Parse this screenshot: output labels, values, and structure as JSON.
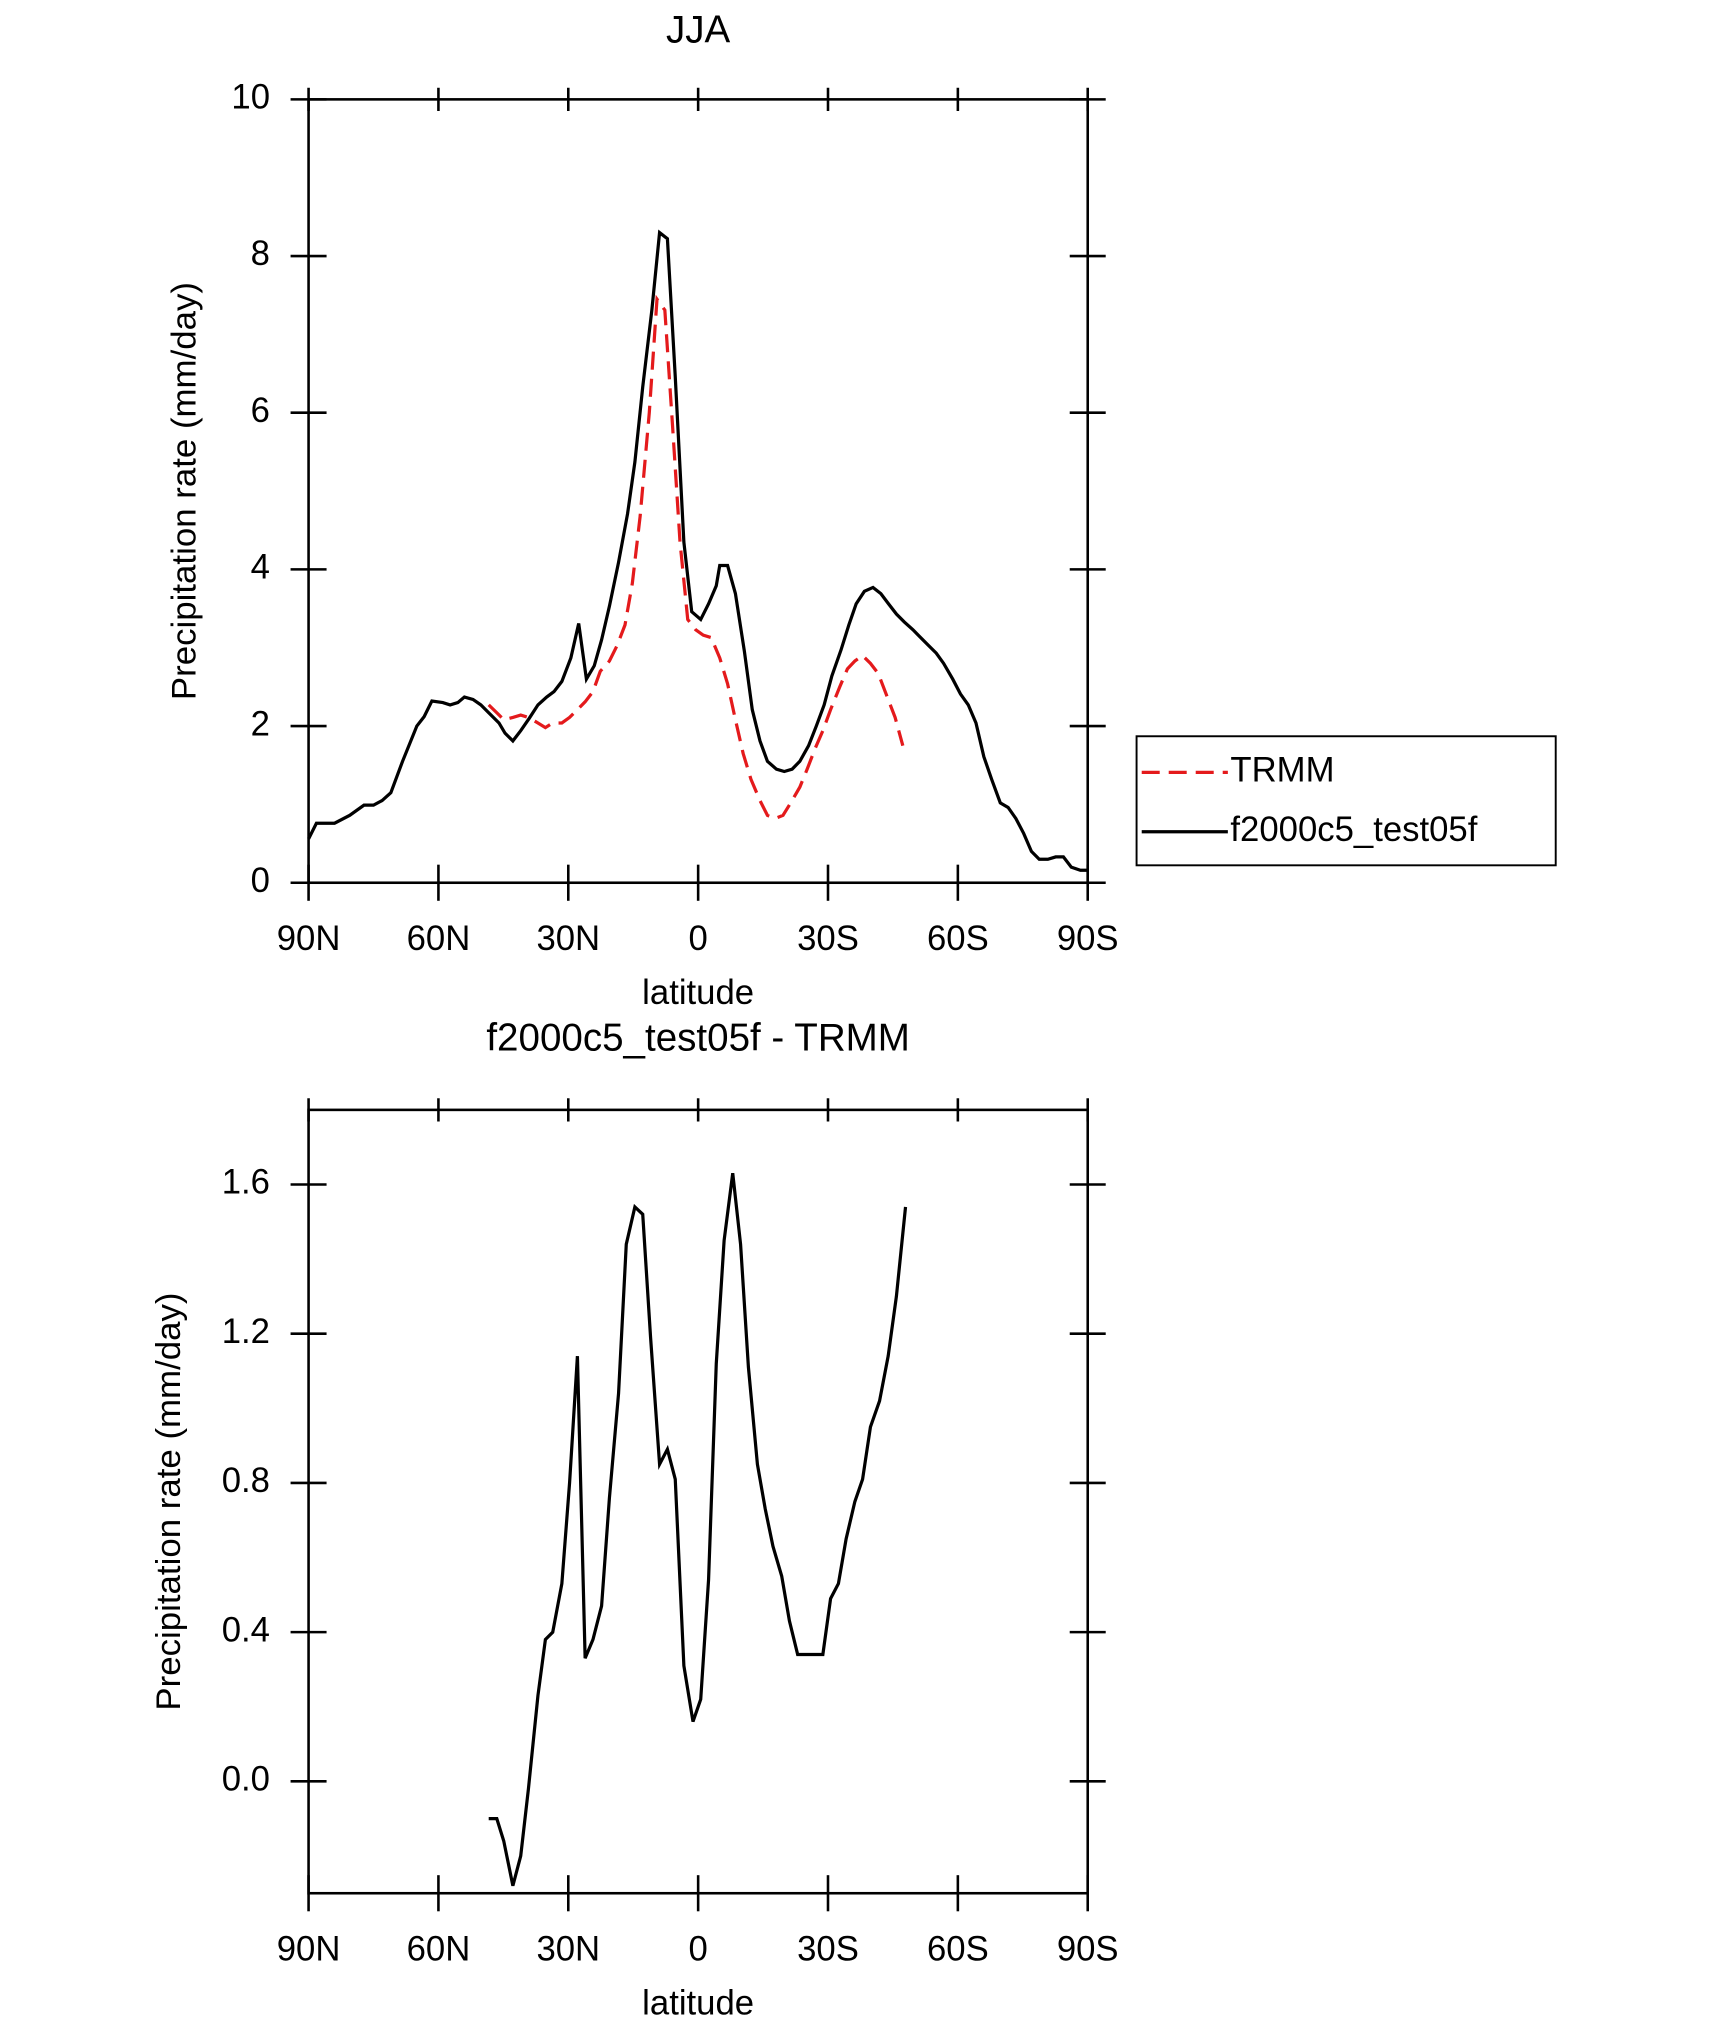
{
  "chart_data": [
    {
      "type": "line",
      "title": "JJA",
      "xlabel": "latitude",
      "ylabel": "Precipitation rate (mm/day)",
      "xlim": [
        90,
        -90
      ],
      "ylim": [
        0,
        10
      ],
      "xticks": [
        {
          "value": 90,
          "label": "90N"
        },
        {
          "value": 60,
          "label": "60N"
        },
        {
          "value": 30,
          "label": "30N"
        },
        0,
        {
          "value": -30,
          "label": "30S"
        },
        {
          "value": -60,
          "label": "60S"
        },
        {
          "value": -90,
          "label": "90S"
        }
      ],
      "yticks": [
        0,
        2,
        4,
        6,
        8,
        10
      ],
      "legend": "right",
      "series": [
        {
          "name": "TRMM",
          "color": "#e41a1c",
          "linestyle": "dashed",
          "x": [
            48.4,
            46.5,
            44.9,
            42.8,
            41,
            39.2,
            37,
            35.3,
            33.6,
            31.5,
            29.7,
            27.9,
            26.1,
            24.3,
            22.6,
            20.5,
            18.7,
            16.9,
            15.2,
            13.4,
            11.3,
            9.5,
            7.7,
            5.9,
            4.2,
            2.4,
            0.6,
            -1.2,
            -3,
            -5,
            -6.8,
            -8.6,
            -10.4,
            -12.2,
            -14.3,
            -16,
            -17.8,
            -19.6,
            -21.4,
            -23.5,
            -25.2,
            -27,
            -28.8,
            -30.6,
            -32.7,
            -34.5,
            -36.2,
            -38,
            -39.8,
            -41.6,
            -43.7,
            -45.5,
            -47.3
          ],
          "values": [
            2.27,
            2.17,
            2.08,
            2.11,
            2.14,
            2.11,
            2.04,
            1.98,
            2.04,
            2.04,
            2.11,
            2.21,
            2.31,
            2.44,
            2.7,
            2.83,
            3.03,
            3.29,
            3.82,
            4.68,
            6.0,
            7.45,
            7.31,
            5.83,
            4.35,
            3.36,
            3.23,
            3.16,
            3.13,
            2.87,
            2.54,
            2.08,
            1.65,
            1.32,
            1.05,
            0.86,
            0.82,
            0.86,
            1.02,
            1.22,
            1.45,
            1.71,
            1.94,
            2.21,
            2.5,
            2.73,
            2.83,
            2.9,
            2.8,
            2.67,
            2.37,
            2.11,
            1.75
          ]
        },
        {
          "name": "f2000c5_test05f",
          "color": "#000000",
          "linestyle": "solid",
          "x": [
            90,
            88.2,
            84,
            80.5,
            77.2,
            75,
            73,
            71,
            68.3,
            65,
            63.3,
            61.5,
            59,
            57.3,
            55.5,
            54,
            52,
            50.2,
            48.4,
            46,
            44.6,
            42.8,
            41,
            39,
            37,
            35,
            33.3,
            31.5,
            29.4,
            27.6,
            25.8,
            24,
            22.3,
            20.5,
            18.4,
            16.3,
            14.6,
            12.8,
            10.7,
            8.9,
            7.1,
            5.3,
            3.3,
            1.5,
            -0.6,
            -2.4,
            -4.2,
            -5,
            -6.8,
            -8.6,
            -10.7,
            -12.5,
            -14.3,
            -16,
            -18.1,
            -19.9,
            -21.7,
            -23.5,
            -25.5,
            -27.3,
            -29.1,
            -30.9,
            -33,
            -34.8,
            -36.5,
            -38.4,
            -40.4,
            -42.2,
            -44,
            -45.8,
            -47.6,
            -49.6,
            -51.4,
            -53.2,
            -55,
            -56.7,
            -58.8,
            -60.6,
            -62.4,
            -64.2,
            -66,
            -67.8,
            -69.8,
            -71.6,
            -73.4,
            -75.2,
            -77,
            -78.8,
            -80.8,
            -82.6,
            -84.4,
            -86.2,
            -88.3,
            -90
          ],
          "values": [
            0.56,
            0.76,
            0.76,
            0.86,
            0.99,
            0.99,
            1.05,
            1.15,
            1.55,
            2.0,
            2.12,
            2.32,
            2.3,
            2.27,
            2.3,
            2.37,
            2.34,
            2.27,
            2.17,
            2.04,
            1.91,
            1.81,
            1.94,
            2.1,
            2.27,
            2.37,
            2.44,
            2.57,
            2.87,
            3.31,
            2.6,
            2.77,
            3.1,
            3.53,
            4.09,
            4.71,
            5.37,
            6.33,
            7.31,
            8.3,
            8.22,
            6.46,
            4.35,
            3.46,
            3.36,
            3.56,
            3.79,
            4.05,
            4.05,
            3.69,
            2.95,
            2.21,
            1.81,
            1.55,
            1.45,
            1.42,
            1.45,
            1.55,
            1.75,
            2.0,
            2.27,
            2.64,
            2.97,
            3.29,
            3.56,
            3.72,
            3.77,
            3.69,
            3.56,
            3.43,
            3.33,
            3.23,
            3.13,
            3.03,
            2.93,
            2.8,
            2.6,
            2.41,
            2.27,
            2.04,
            1.61,
            1.32,
            1.02,
            0.96,
            0.82,
            0.63,
            0.4,
            0.3,
            0.3,
            0.33,
            0.33,
            0.2,
            0.16,
            0.16
          ]
        }
      ]
    },
    {
      "type": "line",
      "title": "f2000c5_test05f - TRMM",
      "xlabel": "latitude",
      "ylabel": "Precipitation rate (mm/day)",
      "xlim": [
        90,
        -90
      ],
      "ylim": [
        -0.3,
        1.8
      ],
      "xticks": [
        {
          "value": 90,
          "label": "90N"
        },
        {
          "value": 60,
          "label": "60N"
        },
        {
          "value": 30,
          "label": "30N"
        },
        0,
        {
          "value": -30,
          "label": "30S"
        },
        {
          "value": -60,
          "label": "60S"
        },
        {
          "value": -90,
          "label": "90S"
        }
      ],
      "yticks": [
        {
          "value": 0,
          "label": "0.0"
        },
        {
          "value": 0.4,
          "label": "0.4"
        },
        {
          "value": 0.8,
          "label": "0.8"
        },
        {
          "value": 1.2,
          "label": "1.2"
        },
        {
          "value": 1.6,
          "label": "1.6"
        }
      ],
      "series": [
        {
          "color": "#000000",
          "linestyle": "solid",
          "x": [
            48.4,
            46.5,
            44.9,
            42.8,
            41,
            39.2,
            37,
            35.3,
            33.6,
            31.5,
            29.7,
            27.9,
            26.1,
            24.3,
            22.3,
            20.5,
            18.4,
            16.6,
            14.6,
            12.8,
            11,
            8.9,
            7.1,
            5.3,
            3.3,
            1.2,
            -0.6,
            -2.4,
            -4.2,
            -6,
            -8,
            -9.8,
            -11.6,
            -13.7,
            -15.5,
            -17.3,
            -19.3,
            -21.1,
            -23,
            -24.8,
            -26.5,
            -28.8,
            -30.6,
            -32.4,
            -34.2,
            -36.2,
            -38,
            -39.8,
            -41.9,
            -43.9,
            -45.8,
            -47.9
          ],
          "values": [
            -0.1,
            -0.1,
            -0.16,
            -0.28,
            -0.2,
            -0.02,
            0.23,
            0.38,
            0.4,
            0.53,
            0.8,
            1.14,
            0.33,
            0.38,
            0.47,
            0.76,
            1.04,
            1.44,
            1.54,
            1.52,
            1.19,
            0.85,
            0.89,
            0.81,
            0.31,
            0.16,
            0.22,
            0.54,
            1.12,
            1.45,
            1.63,
            1.44,
            1.11,
            0.85,
            0.73,
            0.63,
            0.55,
            0.43,
            0.34,
            0.34,
            0.34,
            0.34,
            0.49,
            0.53,
            0.65,
            0.75,
            0.81,
            0.95,
            1.02,
            1.14,
            1.3,
            1.54
          ]
        }
      ]
    }
  ]
}
